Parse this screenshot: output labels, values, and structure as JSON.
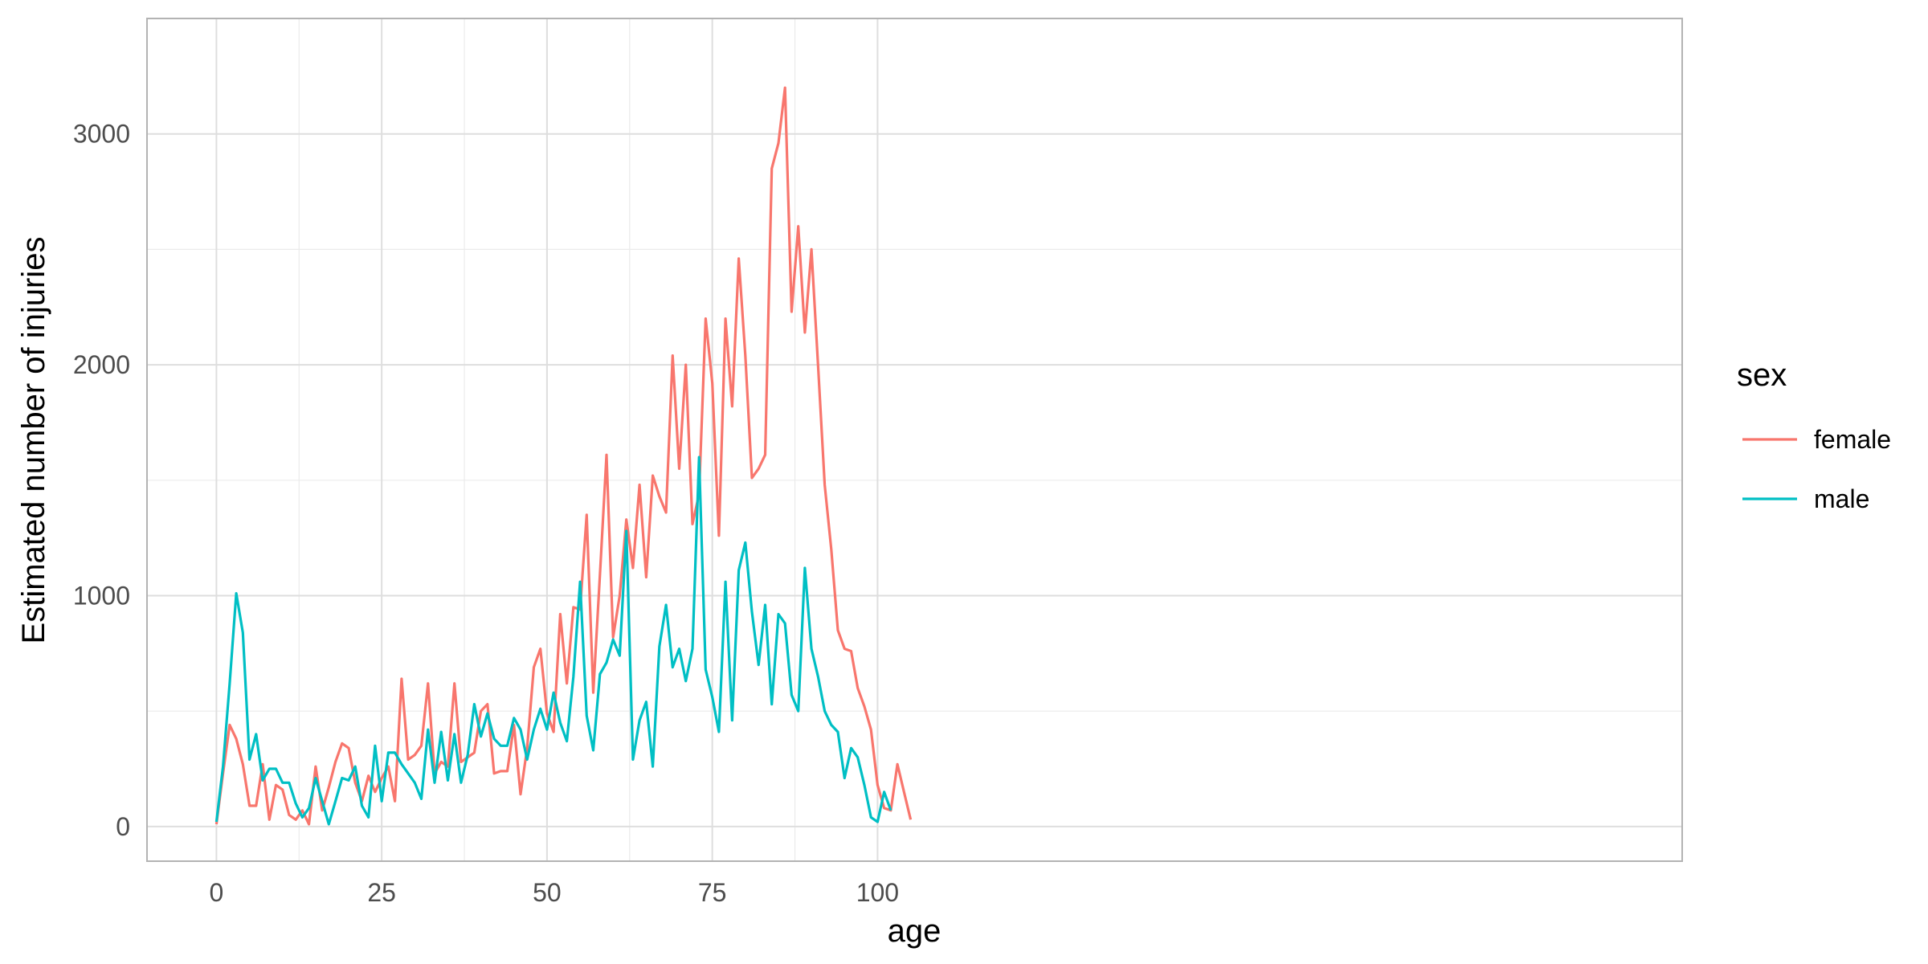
{
  "chart_data": {
    "type": "line",
    "title": "",
    "xlabel": "age",
    "ylabel": "Estimated number of injuries",
    "xlim": [
      -10.5,
      221.7
    ],
    "ylim": [
      -150,
      3500
    ],
    "x_ticks": [
      0,
      25,
      50,
      75,
      100
    ],
    "x_tick_labels": [
      "0",
      "25",
      "50",
      "75",
      "100"
    ],
    "y_ticks": [
      0,
      1000,
      2000,
      3000
    ],
    "y_tick_labels": [
      "0",
      "1000",
      "2000",
      "3000"
    ],
    "x_minor_ticks": [
      12.5,
      37.5,
      62.5,
      87.5
    ],
    "y_minor_ticks": [
      500,
      1500,
      2500
    ],
    "grid": true,
    "legend": {
      "title": "sex",
      "placement": "right"
    },
    "series": [
      {
        "name": "female",
        "color": "#F8766D",
        "x": [
          0,
          1,
          2,
          3,
          4,
          5,
          6,
          7,
          8,
          9,
          10,
          11,
          12,
          13,
          14,
          15,
          16,
          17,
          18,
          19,
          20,
          21,
          22,
          23,
          24,
          25,
          26,
          27,
          28,
          29,
          30,
          31,
          32,
          33,
          34,
          35,
          36,
          37,
          38,
          39,
          40,
          41,
          42,
          43,
          44,
          45,
          46,
          47,
          48,
          49,
          50,
          51,
          52,
          53,
          54,
          55,
          56,
          57,
          58,
          59,
          60,
          61,
          62,
          63,
          64,
          65,
          66,
          67,
          68,
          69,
          70,
          71,
          72,
          73,
          74,
          75,
          76,
          77,
          78,
          79,
          80,
          81,
          82,
          83,
          84,
          85,
          86,
          87,
          88,
          89,
          90,
          91,
          92,
          93,
          94,
          95,
          96,
          97,
          98,
          99,
          100,
          101,
          102,
          103,
          104,
          105
        ],
        "values": [
          10,
          230,
          440,
          380,
          270,
          90,
          90,
          270,
          30,
          180,
          160,
          50,
          30,
          70,
          10,
          260,
          70,
          170,
          280,
          360,
          340,
          190,
          110,
          220,
          150,
          210,
          260,
          110,
          640,
          290,
          310,
          350,
          620,
          230,
          280,
          260,
          620,
          280,
          300,
          320,
          500,
          530,
          230,
          240,
          240,
          440,
          140,
          340,
          690,
          770,
          490,
          410,
          920,
          620,
          950,
          940,
          1350,
          580,
          1090,
          1610,
          820,
          1000,
          1330,
          1120,
          1480,
          1080,
          1520,
          1430,
          1360,
          2040,
          1550,
          2000,
          1310,
          1440,
          2200,
          1920,
          1260,
          2200,
          1820,
          2460,
          2040,
          1510,
          1550,
          1610,
          2850,
          2960,
          3200,
          2230,
          2600,
          2140,
          2500,
          2000,
          1480,
          1200,
          850,
          770,
          760,
          600,
          520,
          420,
          180,
          80,
          70,
          270,
          150,
          30
        ]
      },
      {
        "name": "male",
        "color": "#00BFC4",
        "x": [
          0,
          1,
          2,
          3,
          4,
          5,
          6,
          7,
          8,
          9,
          10,
          11,
          12,
          13,
          14,
          15,
          16,
          17,
          18,
          19,
          20,
          21,
          22,
          23,
          24,
          25,
          26,
          27,
          28,
          29,
          30,
          31,
          32,
          33,
          34,
          35,
          36,
          37,
          38,
          39,
          40,
          41,
          42,
          43,
          44,
          45,
          46,
          47,
          48,
          49,
          50,
          51,
          52,
          53,
          54,
          55,
          56,
          57,
          58,
          59,
          60,
          61,
          62,
          63,
          64,
          65,
          66,
          67,
          68,
          69,
          70,
          71,
          72,
          73,
          74,
          75,
          76,
          77,
          78,
          79,
          80,
          81,
          82,
          83,
          84,
          85,
          86,
          87,
          88,
          89,
          90,
          91,
          92,
          93,
          94,
          95,
          96,
          97,
          98,
          99,
          100,
          101,
          102
        ],
        "values": [
          20,
          260,
          620,
          1010,
          840,
          290,
          400,
          200,
          250,
          250,
          190,
          190,
          100,
          40,
          80,
          210,
          110,
          10,
          110,
          210,
          200,
          260,
          90,
          40,
          350,
          110,
          320,
          320,
          270,
          230,
          190,
          120,
          420,
          190,
          410,
          200,
          400,
          190,
          310,
          530,
          390,
          490,
          380,
          350,
          350,
          470,
          420,
          290,
          420,
          510,
          420,
          580,
          450,
          370,
          650,
          1060,
          480,
          330,
          660,
          710,
          810,
          740,
          1280,
          290,
          460,
          540,
          260,
          780,
          960,
          690,
          770,
          630,
          770,
          1600,
          680,
          560,
          410,
          1060,
          460,
          1110,
          1230,
          930,
          700,
          960,
          530,
          920,
          880,
          570,
          500,
          1120,
          770,
          650,
          500,
          440,
          410,
          210,
          340,
          300,
          180,
          40,
          20,
          150,
          70
        ]
      }
    ]
  }
}
